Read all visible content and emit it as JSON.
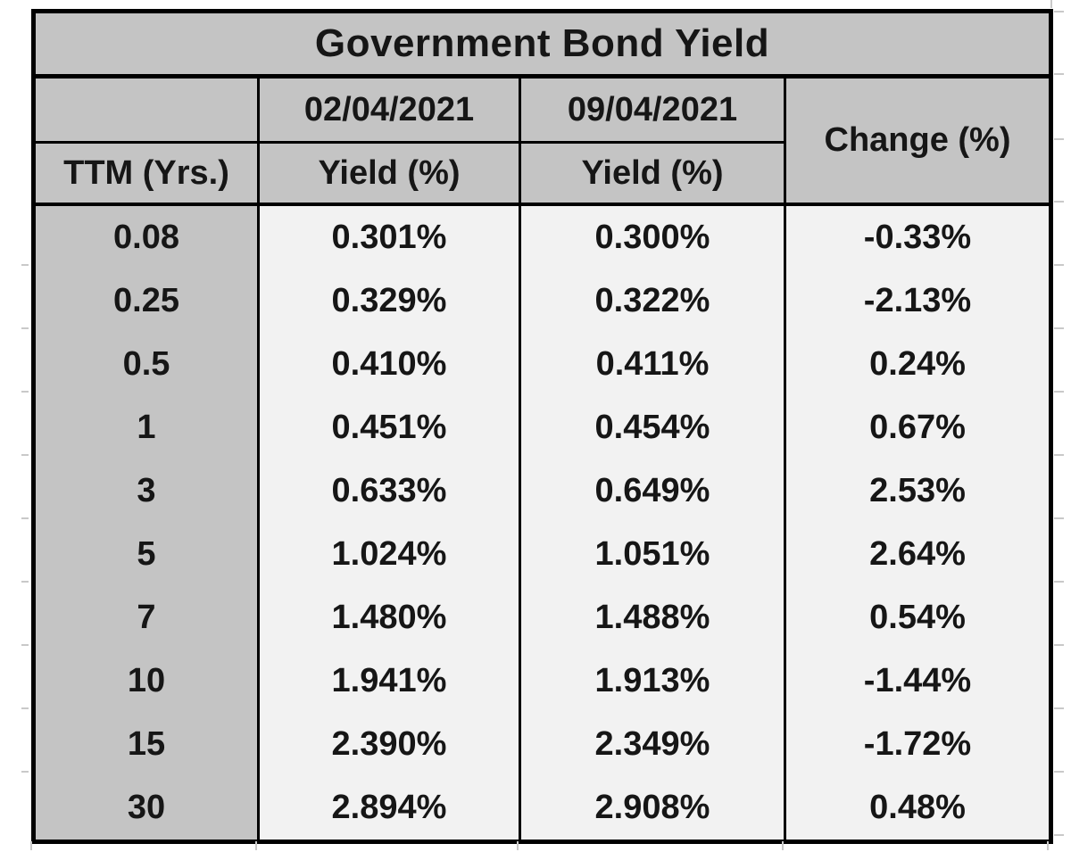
{
  "chart_data": {
    "type": "table",
    "title": "Government Bond Yield",
    "columns": [
      "TTM (Yrs.)",
      "02/04/2021 Yield (%)",
      "09/04/2021 Yield (%)",
      "Change (%)"
    ],
    "rows": [
      [
        "0.08",
        "0.301%",
        "0.300%",
        "-0.33%"
      ],
      [
        "0.25",
        "0.329%",
        "0.322%",
        "-2.13%"
      ],
      [
        "0.5",
        "0.410%",
        "0.411%",
        "0.24%"
      ],
      [
        "1",
        "0.451%",
        "0.454%",
        "0.67%"
      ],
      [
        "3",
        "0.633%",
        "0.649%",
        "2.53%"
      ],
      [
        "5",
        "1.024%",
        "1.051%",
        "2.64%"
      ],
      [
        "7",
        "1.480%",
        "1.488%",
        "0.54%"
      ],
      [
        "10",
        "1.941%",
        "1.913%",
        "-1.44%"
      ],
      [
        "15",
        "2.390%",
        "2.349%",
        "-1.72%"
      ],
      [
        "30",
        "2.894%",
        "2.908%",
        "0.48%"
      ]
    ]
  },
  "header": {
    "date_col1": "02/04/2021",
    "date_col2": "09/04/2021",
    "yield_col1": "Yield (%)",
    "yield_col2": "Yield (%)",
    "ttm": "TTM (Yrs.)",
    "change": "Change (%)"
  },
  "colors": {
    "header_bg": "#c4c4c4",
    "cell_bg": "#f2f2f2",
    "border": "#000000",
    "text": "#161616",
    "gridline_stub": "#c9c9c9",
    "background": "#ffffff"
  }
}
